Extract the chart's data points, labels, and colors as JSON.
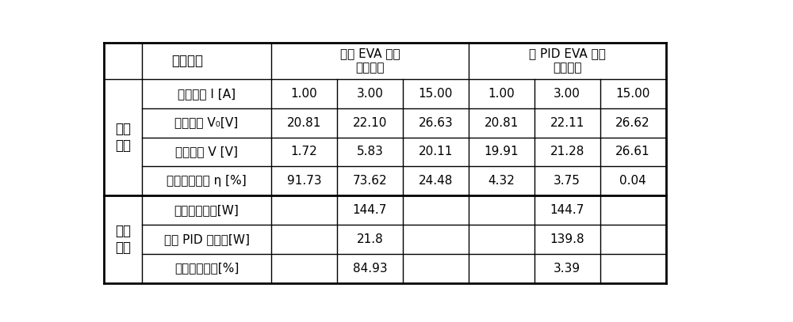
{
  "header_col_label": "测试项目",
  "col_group1_label": "常规 EVA 胶膜\n封装组件",
  "col_group2_label": "抗 PID EVA 胶膜\n封装组件",
  "row_group1_label": "测试\n数据",
  "row_group2_label": "对比\n数据",
  "rows": [
    {
      "item": "恒定电流 I [A]",
      "eva1": [
        "1.00",
        "3.00",
        "15.00"
      ],
      "eva2": [
        "1.00",
        "3.00",
        "15.00"
      ]
    },
    {
      "item": "初始电压 V₀[V]",
      "eva1": [
        "20.81",
        "22.10",
        "26.63"
      ],
      "eva2": [
        "20.81",
        "22.11",
        "26.62"
      ]
    },
    {
      "item": "终点电压 V [V]",
      "eva1": [
        "1.72",
        "5.83",
        "20.11"
      ],
      "eva2": [
        "19.91",
        "21.28",
        "26.61"
      ]
    },
    {
      "item": "电压下降比例 η [%]",
      "eva1": [
        "91.73",
        "73.62",
        "24.48"
      ],
      "eva2": [
        "4.32",
        "3.75",
        "0.04"
      ]
    },
    {
      "item": "组件初始功率[W]",
      "eva1_merged": "144.7",
      "eva2_merged": "144.7"
    },
    {
      "item": "组件 PID 后功率[W]",
      "eva1_merged": "21.8",
      "eva2_merged": "139.8"
    },
    {
      "item": "功率下降比例[%]",
      "eva1_merged": "84.93",
      "eva2_merged": "3.39"
    }
  ],
  "bg_color": "#ffffff",
  "line_color": "#000000",
  "text_color": "#000000"
}
